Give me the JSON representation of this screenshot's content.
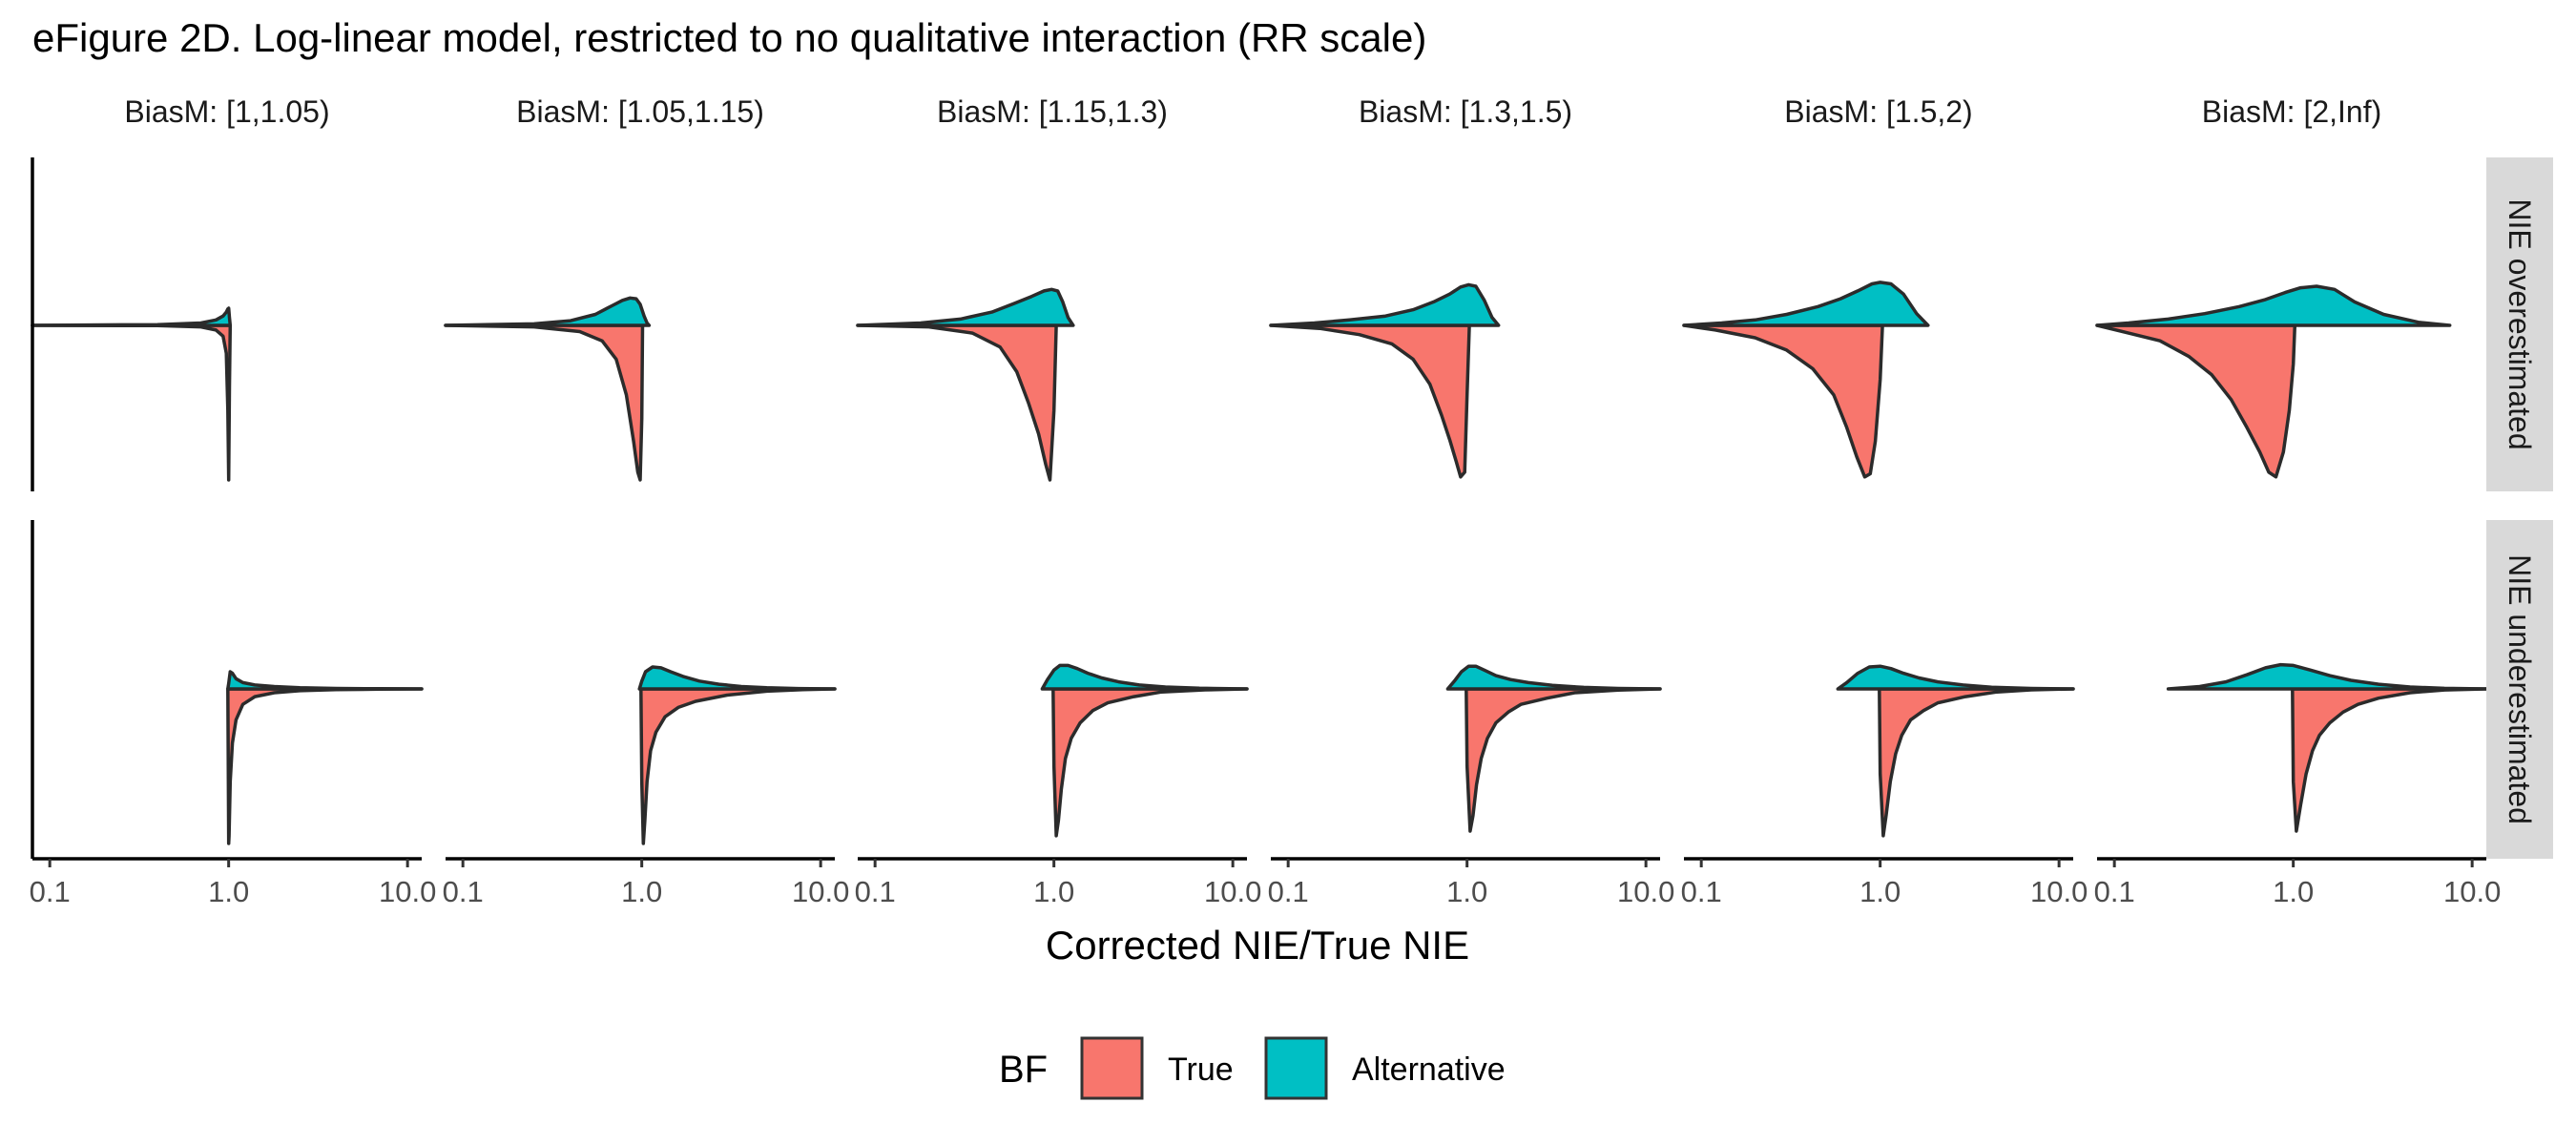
{
  "chart_data": {
    "type": "area",
    "subtype": "faceted split density (half-violin) plot, log x scale",
    "title": "eFigure 2D. Log-linear model, restricted to no qualitative interaction (RR scale)",
    "xlabel": "Corrected NIE/True NIE",
    "x_scale": "log10",
    "xlim": [
      0.08,
      12
    ],
    "x_ticks": [
      "0.1",
      "1.0",
      "10.0"
    ],
    "x_tick_values": [
      0.1,
      1.0,
      10.0
    ],
    "column_facets": [
      "BiasM: [1,1.05)",
      "BiasM: [1.05,1.15)",
      "BiasM: [1.15,1.3)",
      "BiasM: [1.3,1.5)",
      "BiasM: [1.5,2)",
      "BiasM: [2,Inf)"
    ],
    "row_facets": [
      "NIE overestimated",
      "NIE underestimated"
    ],
    "legend": {
      "title": "BF",
      "position": "bottom",
      "entries": [
        {
          "label": "True",
          "color": "#F8766D"
        },
        {
          "label": "Alternative",
          "color": "#00BFC4"
        }
      ]
    },
    "series": [
      {
        "name": "True",
        "color": "#F8766D",
        "direction": "down"
      },
      {
        "name": "Alternative",
        "color": "#00BFC4",
        "direction": "up"
      }
    ],
    "panels": [
      {
        "row": 0,
        "col": 0,
        "True": {
          "x": [
            0.08,
            0.4,
            0.7,
            0.85,
            0.93,
            0.97,
            0.99,
            1.0,
            1.01,
            1.02
          ],
          "y": [
            0,
            0.002,
            0.01,
            0.03,
            0.07,
            0.18,
            0.55,
            1.0,
            0.4,
            0
          ]
        },
        "Alternative": {
          "x": [
            0.08,
            0.4,
            0.7,
            0.85,
            0.93,
            0.97,
            0.99,
            1.0,
            1.01,
            1.02
          ],
          "y": [
            0,
            0.01,
            0.03,
            0.07,
            0.12,
            0.17,
            0.21,
            0.22,
            0.1,
            0
          ]
        }
      },
      {
        "row": 0,
        "col": 1,
        "True": {
          "x": [
            0.08,
            0.25,
            0.45,
            0.6,
            0.72,
            0.82,
            0.9,
            0.95,
            0.98,
            1.0,
            1.01
          ],
          "y": [
            0,
            0.01,
            0.04,
            0.1,
            0.22,
            0.45,
            0.75,
            0.95,
            1.0,
            0.6,
            0
          ]
        },
        "Alternative": {
          "x": [
            0.08,
            0.25,
            0.4,
            0.55,
            0.68,
            0.78,
            0.86,
            0.93,
            0.98,
            1.03,
            1.07,
            1.1
          ],
          "y": [
            0,
            0.02,
            0.06,
            0.14,
            0.25,
            0.32,
            0.35,
            0.34,
            0.27,
            0.12,
            0.03,
            0
          ]
        }
      },
      {
        "row": 0,
        "col": 2,
        "True": {
          "x": [
            0.08,
            0.2,
            0.35,
            0.5,
            0.62,
            0.72,
            0.82,
            0.9,
            0.95,
            1.0,
            1.03
          ],
          "y": [
            0,
            0.01,
            0.05,
            0.14,
            0.3,
            0.5,
            0.7,
            0.9,
            1.0,
            0.55,
            0
          ]
        },
        "Alternative": {
          "x": [
            0.08,
            0.18,
            0.3,
            0.45,
            0.6,
            0.75,
            0.88,
            0.97,
            1.05,
            1.12,
            1.2,
            1.28
          ],
          "y": [
            0,
            0.03,
            0.08,
            0.17,
            0.28,
            0.37,
            0.44,
            0.46,
            0.44,
            0.3,
            0.1,
            0
          ]
        }
      },
      {
        "row": 0,
        "col": 3,
        "True": {
          "x": [
            0.08,
            0.15,
            0.25,
            0.38,
            0.5,
            0.62,
            0.72,
            0.8,
            0.87,
            0.92,
            0.97,
            1.0,
            1.03
          ],
          "y": [
            0,
            0.02,
            0.06,
            0.12,
            0.22,
            0.38,
            0.58,
            0.74,
            0.88,
            0.98,
            0.95,
            0.45,
            0
          ]
        },
        "Alternative": {
          "x": [
            0.08,
            0.14,
            0.22,
            0.35,
            0.5,
            0.65,
            0.8,
            0.92,
            1.02,
            1.12,
            1.25,
            1.38,
            1.5
          ],
          "y": [
            0,
            0.03,
            0.07,
            0.12,
            0.2,
            0.3,
            0.4,
            0.49,
            0.52,
            0.5,
            0.32,
            0.1,
            0
          ]
        }
      },
      {
        "row": 0,
        "col": 4,
        "True": {
          "x": [
            0.08,
            0.12,
            0.2,
            0.3,
            0.42,
            0.55,
            0.65,
            0.74,
            0.82,
            0.88,
            0.94,
            1.0,
            1.03
          ],
          "y": [
            0,
            0.03,
            0.08,
            0.16,
            0.28,
            0.45,
            0.66,
            0.85,
            0.98,
            0.96,
            0.75,
            0.35,
            0
          ]
        },
        "Alternative": {
          "x": [
            0.08,
            0.13,
            0.2,
            0.3,
            0.45,
            0.6,
            0.75,
            0.9,
            1.0,
            1.15,
            1.35,
            1.6,
            1.85
          ],
          "y": [
            0,
            0.03,
            0.07,
            0.14,
            0.24,
            0.34,
            0.44,
            0.53,
            0.55,
            0.53,
            0.4,
            0.15,
            0
          ]
        }
      },
      {
        "row": 0,
        "col": 5,
        "True": {
          "x": [
            0.08,
            0.12,
            0.18,
            0.26,
            0.35,
            0.45,
            0.55,
            0.65,
            0.73,
            0.8,
            0.88,
            0.95,
            1.0,
            1.02
          ],
          "y": [
            0,
            0.05,
            0.1,
            0.2,
            0.32,
            0.48,
            0.66,
            0.82,
            0.95,
            0.98,
            0.82,
            0.55,
            0.25,
            0
          ]
        },
        "Alternative": {
          "x": [
            0.08,
            0.12,
            0.2,
            0.32,
            0.5,
            0.7,
            0.9,
            1.1,
            1.35,
            1.7,
            2.2,
            3.2,
            5,
            7.5
          ],
          "y": [
            0,
            0.03,
            0.08,
            0.15,
            0.24,
            0.33,
            0.42,
            0.48,
            0.5,
            0.46,
            0.3,
            0.14,
            0.04,
            0
          ]
        }
      },
      {
        "row": 1,
        "col": 0,
        "True": {
          "x": [
            0.99,
            1.0,
            1.005,
            1.02,
            1.05,
            1.1,
            1.2,
            1.4,
            1.8,
            2.5,
            4,
            7,
            12
          ],
          "y": [
            0,
            1.0,
            0.95,
            0.6,
            0.35,
            0.2,
            0.1,
            0.05,
            0.025,
            0.012,
            0.005,
            0.002,
            0
          ]
        },
        "Alternative": {
          "x": [
            0.99,
            1.0,
            1.02,
            1.05,
            1.1,
            1.2,
            1.4,
            1.8,
            2.5,
            4,
            7,
            12
          ],
          "y": [
            0,
            0.07,
            0.22,
            0.2,
            0.13,
            0.08,
            0.05,
            0.03,
            0.015,
            0.006,
            0.002,
            0
          ]
        }
      },
      {
        "row": 1,
        "col": 1,
        "True": {
          "x": [
            0.99,
            1.0,
            1.02,
            1.04,
            1.07,
            1.12,
            1.2,
            1.35,
            1.6,
            2.0,
            3.0,
            5,
            8,
            12
          ],
          "y": [
            0,
            0.6,
            1.0,
            0.85,
            0.6,
            0.4,
            0.28,
            0.18,
            0.12,
            0.08,
            0.04,
            0.015,
            0.005,
            0
          ]
        },
        "Alternative": {
          "x": [
            0.97,
            1.0,
            1.05,
            1.15,
            1.28,
            1.45,
            1.7,
            2.1,
            2.7,
            3.6,
            5,
            7.5,
            12
          ],
          "y": [
            0,
            0.1,
            0.22,
            0.28,
            0.27,
            0.22,
            0.16,
            0.1,
            0.06,
            0.03,
            0.015,
            0.005,
            0
          ]
        }
      },
      {
        "row": 1,
        "col": 2,
        "True": {
          "x": [
            0.99,
            1.0,
            1.03,
            1.06,
            1.1,
            1.16,
            1.25,
            1.4,
            1.65,
            2.0,
            2.8,
            4,
            7,
            12
          ],
          "y": [
            0,
            0.5,
            0.95,
            0.85,
            0.65,
            0.45,
            0.32,
            0.22,
            0.14,
            0.09,
            0.05,
            0.02,
            0.006,
            0
          ]
        },
        "Alternative": {
          "x": [
            0.86,
            0.92,
            1.0,
            1.08,
            1.2,
            1.35,
            1.55,
            1.85,
            2.3,
            3.0,
            4.2,
            6.5,
            12
          ],
          "y": [
            0,
            0.12,
            0.24,
            0.3,
            0.3,
            0.26,
            0.2,
            0.14,
            0.09,
            0.05,
            0.025,
            0.008,
            0
          ]
        }
      },
      {
        "row": 1,
        "col": 3,
        "True": {
          "x": [
            0.99,
            1.0,
            1.04,
            1.08,
            1.13,
            1.2,
            1.3,
            1.45,
            1.7,
            2.0,
            2.8,
            4,
            7,
            12
          ],
          "y": [
            0,
            0.5,
            0.92,
            0.82,
            0.62,
            0.45,
            0.32,
            0.22,
            0.15,
            0.1,
            0.06,
            0.025,
            0.008,
            0
          ]
        },
        "Alternative": {
          "x": [
            0.78,
            0.85,
            0.93,
            1.02,
            1.12,
            1.25,
            1.45,
            1.75,
            2.2,
            3.0,
            4.5,
            7,
            12
          ],
          "y": [
            0,
            0.1,
            0.22,
            0.29,
            0.29,
            0.24,
            0.17,
            0.12,
            0.08,
            0.045,
            0.02,
            0.006,
            0
          ]
        }
      },
      {
        "row": 1,
        "col": 4,
        "True": {
          "x": [
            0.99,
            1.0,
            1.04,
            1.08,
            1.14,
            1.22,
            1.32,
            1.48,
            1.75,
            2.1,
            3.0,
            4.5,
            7,
            12
          ],
          "y": [
            0,
            0.55,
            0.95,
            0.82,
            0.6,
            0.42,
            0.3,
            0.2,
            0.14,
            0.09,
            0.05,
            0.02,
            0.006,
            0
          ]
        },
        "Alternative": {
          "x": [
            0.58,
            0.65,
            0.75,
            0.87,
            1.0,
            1.15,
            1.35,
            1.65,
            2.1,
            2.9,
            4.2,
            7,
            12
          ],
          "y": [
            0,
            0.08,
            0.2,
            0.28,
            0.29,
            0.26,
            0.2,
            0.14,
            0.09,
            0.05,
            0.022,
            0.006,
            0
          ]
        }
      },
      {
        "row": 1,
        "col": 5,
        "True": {
          "x": [
            0.99,
            1.0,
            1.04,
            1.1,
            1.18,
            1.28,
            1.4,
            1.6,
            1.9,
            2.3,
            3.0,
            4.5,
            7,
            12
          ],
          "y": [
            0,
            0.6,
            0.92,
            0.75,
            0.55,
            0.4,
            0.3,
            0.22,
            0.15,
            0.1,
            0.06,
            0.025,
            0.007,
            0
          ]
        },
        "Alternative": {
          "x": [
            0.2,
            0.3,
            0.42,
            0.55,
            0.7,
            0.85,
            1.0,
            1.25,
            1.6,
            2.1,
            3.0,
            4.5,
            7,
            12
          ],
          "y": [
            0,
            0.03,
            0.09,
            0.18,
            0.27,
            0.31,
            0.3,
            0.24,
            0.17,
            0.11,
            0.06,
            0.025,
            0.007,
            0
          ]
        }
      }
    ]
  }
}
